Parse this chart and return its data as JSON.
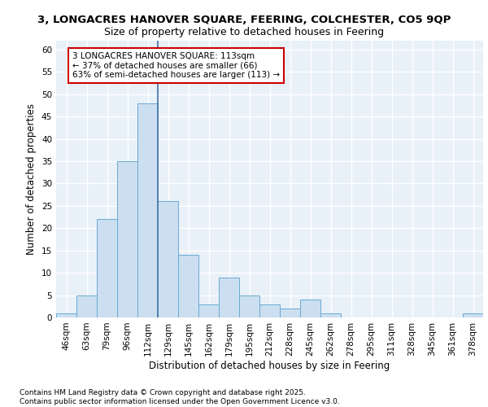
{
  "title1": "3, LONGACRES HANOVER SQUARE, FEERING, COLCHESTER, CO5 9QP",
  "title2": "Size of property relative to detached houses in Feering",
  "xlabel": "Distribution of detached houses by size in Feering",
  "ylabel": "Number of detached properties",
  "categories": [
    "46sqm",
    "63sqm",
    "79sqm",
    "96sqm",
    "112sqm",
    "129sqm",
    "145sqm",
    "162sqm",
    "179sqm",
    "195sqm",
    "212sqm",
    "228sqm",
    "245sqm",
    "262sqm",
    "278sqm",
    "295sqm",
    "311sqm",
    "328sqm",
    "345sqm",
    "361sqm",
    "378sqm"
  ],
  "values": [
    1,
    5,
    22,
    35,
    48,
    26,
    14,
    3,
    9,
    5,
    3,
    2,
    4,
    1,
    0,
    0,
    0,
    0,
    0,
    0,
    1
  ],
  "bar_color": "#ccdff0",
  "bar_edge_color": "#6aaad4",
  "vline_x_index": 4,
  "vline_color": "#4472a8",
  "annotation_text": "3 LONGACRES HANOVER SQUARE: 113sqm\n← 37% of detached houses are smaller (66)\n63% of semi-detached houses are larger (113) →",
  "annotation_box_color": "white",
  "annotation_box_edge_color": "#cc0000",
  "ylim": [
    0,
    62
  ],
  "yticks": [
    0,
    5,
    10,
    15,
    20,
    25,
    30,
    35,
    40,
    45,
    50,
    55,
    60
  ],
  "bg_color": "#e8f0f8",
  "grid_color": "white",
  "footer": "Contains HM Land Registry data © Crown copyright and database right 2025.\nContains public sector information licensed under the Open Government Licence v3.0.",
  "title_fontsize": 9.5,
  "subtitle_fontsize": 9,
  "axis_label_fontsize": 8.5,
  "tick_fontsize": 7.5,
  "annotation_fontsize": 7.5,
  "footer_fontsize": 6.5
}
